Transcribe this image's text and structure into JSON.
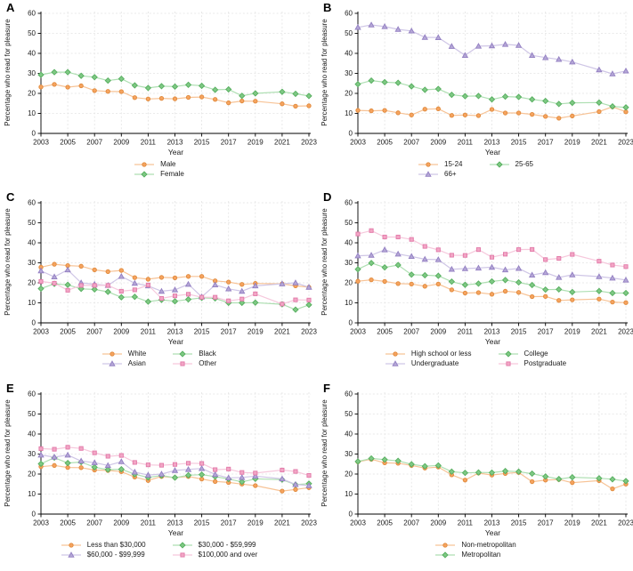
{
  "figure": {
    "ylabel": "Percentage who read for pleasure",
    "xlabel": "Year",
    "yticks": [
      0,
      10,
      20,
      30,
      40,
      50,
      60
    ],
    "xtick_years": [
      2003,
      2005,
      2007,
      2009,
      2011,
      2013,
      2015,
      2017,
      2019,
      2021,
      2023
    ],
    "years": [
      2003,
      2004,
      2005,
      2006,
      2007,
      2008,
      2009,
      2010,
      2011,
      2012,
      2013,
      2014,
      2015,
      2016,
      2017,
      2018,
      2019,
      2021,
      2022,
      2023
    ],
    "ylim": [
      0,
      62
    ],
    "grid": "dashed-light",
    "legend_position": "bottom-center"
  },
  "palette": {
    "orange": {
      "fill": "#F5A35F",
      "stroke": "#E08A3C",
      "line": "#F7C396",
      "marker": "circle"
    },
    "green": {
      "fill": "#7FC884",
      "stroke": "#55AE5E",
      "line": "#AEDFB2",
      "marker": "diamond"
    },
    "purple": {
      "fill": "#B4A7D6",
      "stroke": "#937FC2",
      "line": "#CFC6E6",
      "marker": "triangle"
    },
    "pink": {
      "fill": "#F2A6C5",
      "stroke": "#E279A8",
      "line": "#F6C8DC",
      "marker": "square"
    }
  },
  "chart_data": [
    {
      "panel": "A",
      "type": "line",
      "legend_columns": 1,
      "series": [
        {
          "name": "Male",
          "color": "orange",
          "values": [
            23.2,
            24.5,
            23.1,
            23.8,
            21.4,
            21.0,
            20.9,
            17.9,
            17.2,
            17.5,
            17.3,
            18.0,
            18.2,
            17.0,
            15.3,
            16.2,
            16.1,
            14.8,
            13.6,
            13.8
          ]
        },
        {
          "name": "Female",
          "color": "green",
          "values": [
            29.3,
            30.6,
            30.6,
            28.8,
            28.1,
            26.4,
            27.3,
            24.0,
            22.7,
            23.6,
            23.4,
            24.3,
            23.8,
            21.8,
            22.0,
            18.8,
            20.0,
            20.8,
            19.8,
            18.7
          ]
        }
      ]
    },
    {
      "panel": "B",
      "type": "line",
      "legend_columns": 2,
      "series": [
        {
          "name": "15-24",
          "color": "orange",
          "values": [
            11.5,
            11.3,
            11.5,
            10.3,
            9.2,
            12.1,
            12.3,
            9.0,
            9.2,
            8.9,
            12.0,
            10.2,
            10.2,
            9.5,
            8.5,
            7.6,
            8.7,
            10.9,
            13.3,
            10.8
          ]
        },
        {
          "name": "25-65",
          "color": "green",
          "values": [
            24.6,
            26.4,
            25.6,
            25.3,
            23.5,
            21.8,
            22.2,
            19.3,
            18.6,
            18.7,
            17.0,
            18.4,
            18.2,
            17.0,
            16.2,
            14.7,
            15.3,
            15.4,
            13.5,
            13.0
          ]
        },
        {
          "name": "66+",
          "color": "purple",
          "values": [
            53.0,
            54.2,
            53.4,
            52.0,
            51.2,
            48.0,
            47.9,
            43.5,
            39.0,
            43.6,
            43.8,
            44.5,
            44.0,
            39.0,
            37.9,
            37.0,
            35.7,
            31.8,
            29.8,
            31.2
          ]
        }
      ]
    },
    {
      "panel": "C",
      "type": "line",
      "legend_columns": 2,
      "series": [
        {
          "name": "White",
          "color": "orange",
          "values": [
            27.8,
            29.3,
            28.6,
            28.3,
            26.5,
            25.6,
            26.2,
            22.6,
            21.8,
            22.7,
            22.5,
            23.2,
            23.2,
            21.0,
            20.4,
            19.2,
            19.7,
            19.5,
            18.5,
            17.8
          ]
        },
        {
          "name": "Black",
          "color": "green",
          "values": [
            17.1,
            19.5,
            19.0,
            17.0,
            16.7,
            15.5,
            12.8,
            13.0,
            10.6,
            11.5,
            10.8,
            11.7,
            12.5,
            12.2,
            10.0,
            10.0,
            10.1,
            9.3,
            6.6,
            9.0
          ]
        },
        {
          "name": "Asian",
          "color": "purple",
          "values": [
            26.0,
            23.0,
            26.5,
            20.0,
            19.3,
            18.7,
            23.2,
            19.8,
            18.5,
            15.8,
            16.5,
            19.3,
            13.0,
            19.0,
            17.0,
            15.8,
            18.5,
            19.5,
            20.0,
            17.8
          ]
        },
        {
          "name": "Other",
          "color": "pink",
          "values": [
            20.7,
            19.8,
            16.3,
            18.7,
            18.7,
            18.7,
            15.8,
            16.5,
            18.9,
            12.2,
            13.5,
            14.3,
            12.8,
            12.8,
            11.0,
            11.9,
            14.5,
            9.4,
            11.5,
            11.4
          ]
        }
      ]
    },
    {
      "panel": "D",
      "type": "line",
      "legend_columns": 2,
      "series": [
        {
          "name": "High school or less",
          "color": "orange",
          "values": [
            20.8,
            21.5,
            20.7,
            19.6,
            19.4,
            18.3,
            19.4,
            16.5,
            14.9,
            15.1,
            14.3,
            15.8,
            15.2,
            13.1,
            13.2,
            11.2,
            11.5,
            11.9,
            10.4,
            10.1
          ]
        },
        {
          "name": "College",
          "color": "green",
          "values": [
            26.8,
            29.9,
            27.7,
            28.9,
            24.1,
            23.8,
            23.5,
            20.6,
            19.0,
            19.6,
            20.7,
            21.4,
            20.2,
            18.9,
            16.6,
            16.7,
            15.4,
            15.9,
            14.9,
            14.9
          ]
        },
        {
          "name": "Undergraduate",
          "color": "purple",
          "values": [
            33.5,
            33.8,
            36.5,
            34.4,
            33.2,
            31.8,
            31.6,
            26.8,
            27.1,
            27.4,
            27.8,
            26.5,
            27.2,
            23.9,
            25.1,
            22.7,
            24.0,
            23.1,
            22.4,
            21.4
          ]
        },
        {
          "name": "Postgraduate",
          "color": "pink",
          "values": [
            44.4,
            46.1,
            42.9,
            42.9,
            41.7,
            38.2,
            36.5,
            33.8,
            33.7,
            36.6,
            32.8,
            34.3,
            36.6,
            36.7,
            31.6,
            32.2,
            34.2,
            30.8,
            28.9,
            28.1
          ]
        }
      ]
    },
    {
      "panel": "E",
      "type": "line",
      "legend_columns": 2,
      "series": [
        {
          "name": "Less than $30,000",
          "color": "orange",
          "values": [
            23.7,
            24.3,
            23.3,
            23.2,
            22.0,
            21.8,
            21.2,
            18.5,
            16.8,
            18.8,
            18.2,
            18.8,
            17.5,
            16.3,
            15.8,
            15.0,
            14.2,
            11.5,
            12.3,
            13.2
          ]
        },
        {
          "name": "$30,000 - $59,999",
          "color": "green",
          "values": [
            25.1,
            28.2,
            25.5,
            26.0,
            23.4,
            22.2,
            22.4,
            19.9,
            18.3,
            19.3,
            18.2,
            19.4,
            19.7,
            18.7,
            17.5,
            16.1,
            17.6,
            17.2,
            14.7,
            15.2
          ]
        },
        {
          "name": "$60,000 - $99,999",
          "color": "purple",
          "values": [
            29.5,
            28.5,
            29.5,
            26.5,
            25.7,
            24.3,
            26.2,
            21.0,
            19.5,
            20.0,
            21.8,
            22.3,
            22.8,
            19.8,
            18.1,
            18.3,
            19.0,
            17.6,
            14.8,
            14.2
          ]
        },
        {
          "name": "$100,000 and over",
          "color": "pink",
          "values": [
            32.7,
            32.4,
            33.4,
            32.8,
            30.6,
            28.9,
            29.3,
            25.8,
            24.6,
            24.4,
            24.8,
            25.4,
            25.3,
            22.2,
            22.5,
            20.8,
            20.5,
            22.0,
            21.3,
            19.3
          ]
        }
      ]
    },
    {
      "panel": "F",
      "type": "line",
      "legend_columns": 1,
      "series": [
        {
          "name": "Non-metropolitan",
          "color": "orange",
          "values": [
            26.1,
            27.4,
            25.6,
            25.4,
            24.3,
            23.0,
            23.5,
            19.6,
            17.0,
            20.5,
            19.5,
            20.3,
            20.8,
            16.2,
            17.0,
            17.3,
            15.7,
            16.7,
            12.6,
            15.0
          ]
        },
        {
          "name": "Metropolitan",
          "color": "green",
          "values": [
            26.3,
            27.8,
            27.2,
            26.6,
            24.9,
            23.9,
            24.3,
            21.2,
            20.6,
            20.8,
            20.7,
            21.5,
            21.2,
            20.2,
            18.8,
            17.5,
            18.4,
            17.9,
            17.4,
            16.5
          ]
        }
      ]
    }
  ]
}
